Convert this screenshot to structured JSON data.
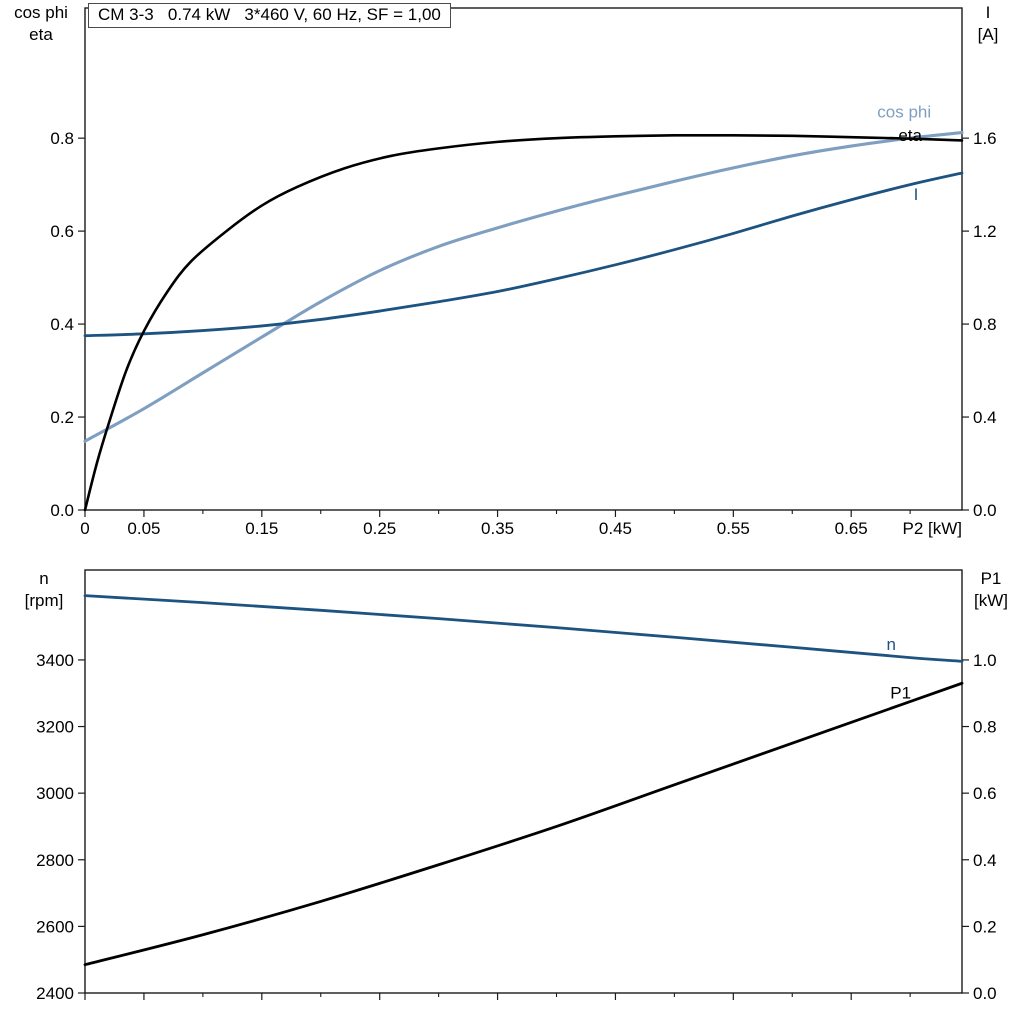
{
  "labels": {
    "top_left": [
      "cos phi",
      "eta"
    ],
    "top_right": [
      "I",
      "[A]"
    ],
    "bottom_left": [
      "n",
      "[rpm]"
    ],
    "bottom_right": [
      "P1",
      "[kW]"
    ]
  },
  "chart_data": [
    {
      "type": "line",
      "title": "CM 3-3   0.74 kW   3*460 V, 60 Hz, SF = 1,00",
      "x_axis": {
        "label": "P2 [kW]",
        "range": [
          0,
          0.744
        ],
        "major_ticks": [
          0,
          0.05,
          0.15,
          0.25,
          0.35,
          0.45,
          0.55,
          0.65
        ],
        "tick_labels": [
          "0",
          "0.05",
          "0.15",
          "0.25",
          "0.35",
          "0.45",
          "0.55",
          "0.65"
        ],
        "minor_ticks": [
          0.1,
          0.2,
          0.3,
          0.4,
          0.5,
          0.6,
          0.7
        ]
      },
      "y_left": {
        "label": "cos phi / eta",
        "range": [
          0,
          1.08
        ],
        "ticks": [
          0,
          0.2,
          0.4,
          0.6,
          0.8
        ],
        "tick_labels": [
          "0.0",
          "0.2",
          "0.4",
          "0.6",
          "0.8"
        ]
      },
      "y_right": {
        "label": "I [A]",
        "range": [
          0,
          2.16
        ],
        "ticks": [
          0,
          0.4,
          0.8,
          1.2,
          1.6
        ],
        "tick_labels": [
          "0.0",
          "0.4",
          "0.8",
          "1.2",
          "1.6"
        ]
      },
      "series": [
        {
          "name": "cos-phi",
          "axis": "left",
          "color": "#7f9fc1",
          "width": 3.1,
          "label": {
            "text": "cos phi",
            "x": 0.695,
            "y": 0.857,
            "color": "#7f9fc1"
          },
          "points": [
            [
              0,
              0.148
            ],
            [
              0.05,
              0.218
            ],
            [
              0.1,
              0.295
            ],
            [
              0.15,
              0.372
            ],
            [
              0.2,
              0.448
            ],
            [
              0.25,
              0.515
            ],
            [
              0.3,
              0.567
            ],
            [
              0.35,
              0.607
            ],
            [
              0.4,
              0.643
            ],
            [
              0.45,
              0.676
            ],
            [
              0.5,
              0.707
            ],
            [
              0.55,
              0.736
            ],
            [
              0.6,
              0.762
            ],
            [
              0.65,
              0.783
            ],
            [
              0.7,
              0.8
            ],
            [
              0.744,
              0.812
            ]
          ]
        },
        {
          "name": "current",
          "axis": "right",
          "color": "#1d5380",
          "width": 2.8,
          "label": {
            "text": "I",
            "x": 0.705,
            "y": 1.36,
            "color": "#1d5380"
          },
          "points": [
            [
              0,
              0.75
            ],
            [
              0.05,
              0.758
            ],
            [
              0.1,
              0.772
            ],
            [
              0.15,
              0.792
            ],
            [
              0.2,
              0.82
            ],
            [
              0.25,
              0.856
            ],
            [
              0.3,
              0.896
            ],
            [
              0.35,
              0.94
            ],
            [
              0.4,
              0.995
            ],
            [
              0.45,
              1.055
            ],
            [
              0.5,
              1.12
            ],
            [
              0.55,
              1.19
            ],
            [
              0.6,
              1.265
            ],
            [
              0.65,
              1.335
            ],
            [
              0.7,
              1.4
            ],
            [
              0.744,
              1.45
            ]
          ]
        },
        {
          "name": "eta",
          "axis": "left",
          "color": "#000000",
          "width": 2.6,
          "label": {
            "text": "eta",
            "x": 0.7,
            "y": 0.807,
            "color": "#000000"
          },
          "points": [
            [
              0,
              0
            ],
            [
              0.01,
              0.1
            ],
            [
              0.02,
              0.185
            ],
            [
              0.035,
              0.3
            ],
            [
              0.05,
              0.385
            ],
            [
              0.07,
              0.47
            ],
            [
              0.09,
              0.535
            ],
            [
              0.12,
              0.6
            ],
            [
              0.15,
              0.655
            ],
            [
              0.18,
              0.695
            ],
            [
              0.22,
              0.735
            ],
            [
              0.26,
              0.762
            ],
            [
              0.3,
              0.778
            ],
            [
              0.35,
              0.792
            ],
            [
              0.4,
              0.8
            ],
            [
              0.45,
              0.804
            ],
            [
              0.5,
              0.806
            ],
            [
              0.55,
              0.806
            ],
            [
              0.6,
              0.805
            ],
            [
              0.65,
              0.802
            ],
            [
              0.7,
              0.799
            ],
            [
              0.744,
              0.795
            ]
          ]
        }
      ]
    },
    {
      "type": "line",
      "title": "",
      "x_axis": {
        "label": "",
        "range": [
          0,
          0.744
        ],
        "major_ticks": [
          0,
          0.05,
          0.15,
          0.25,
          0.35,
          0.45,
          0.55,
          0.65
        ],
        "tick_labels": [
          "",
          "",
          "",
          "",
          "",
          "",
          "",
          ""
        ],
        "minor_ticks": [
          0.1,
          0.2,
          0.3,
          0.4,
          0.5,
          0.6,
          0.7
        ]
      },
      "y_left": {
        "label": "n [rpm]",
        "range": [
          2400,
          3670
        ],
        "ticks": [
          2400,
          2600,
          2800,
          3000,
          3200,
          3400
        ],
        "tick_labels": [
          "2400",
          "2600",
          "2800",
          "3000",
          "3200",
          "3400"
        ]
      },
      "y_right": {
        "label": "P1 [kW]",
        "range": [
          0,
          1.27
        ],
        "ticks": [
          0,
          0.2,
          0.4,
          0.6,
          0.8,
          1.0
        ],
        "tick_labels": [
          "0.0",
          "0.2",
          "0.4",
          "0.6",
          "0.8",
          "1.0"
        ]
      },
      "series": [
        {
          "name": "speed",
          "axis": "left",
          "color": "#1d5380",
          "width": 2.8,
          "label": {
            "text": "n",
            "x": 0.684,
            "y": 3448,
            "color": "#1d5380"
          },
          "points": [
            [
              0,
              3593
            ],
            [
              0.1,
              3572
            ],
            [
              0.2,
              3549
            ],
            [
              0.3,
              3524
            ],
            [
              0.4,
              3497
            ],
            [
              0.5,
              3468
            ],
            [
              0.6,
              3438
            ],
            [
              0.7,
              3407
            ],
            [
              0.744,
              3396
            ]
          ]
        },
        {
          "name": "p1-power",
          "axis": "right",
          "color": "#000000",
          "width": 2.8,
          "label": {
            "text": "P1",
            "x": 0.692,
            "y": 0.902,
            "color": "#000000"
          },
          "points": [
            [
              0,
              0.085
            ],
            [
              0.1,
              0.175
            ],
            [
              0.2,
              0.275
            ],
            [
              0.3,
              0.385
            ],
            [
              0.4,
              0.5
            ],
            [
              0.5,
              0.625
            ],
            [
              0.6,
              0.75
            ],
            [
              0.7,
              0.875
            ],
            [
              0.744,
              0.93
            ]
          ]
        }
      ]
    }
  ]
}
